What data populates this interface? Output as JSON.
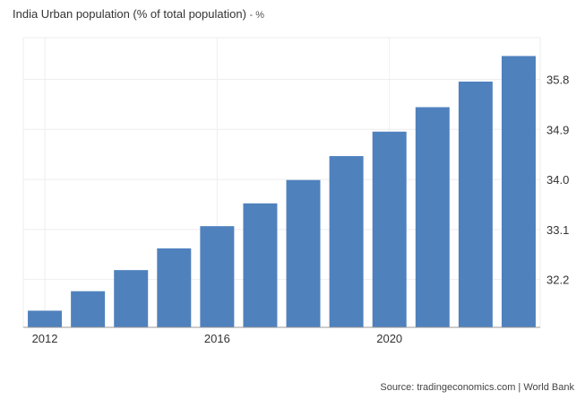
{
  "header": {
    "title": "India Urban population (% of total population)",
    "unit": "- %"
  },
  "footer": {
    "source": "Source: tradingeconomics.com | World Bank"
  },
  "chart_data": {
    "type": "bar",
    "title": "India Urban population (% of total population)",
    "unit": "%",
    "categories": [
      "2012",
      "2013",
      "2014",
      "2015",
      "2016",
      "2017",
      "2018",
      "2019",
      "2020",
      "2021",
      "2022",
      "2023"
    ],
    "values": [
      31.64,
      31.99,
      32.37,
      32.76,
      33.16,
      33.57,
      33.99,
      34.42,
      34.86,
      35.3,
      35.76,
      36.22
    ],
    "x_tick_labels": [
      "2012",
      "2016",
      "2020"
    ],
    "y_ticks": [
      32.2,
      33.1,
      34.0,
      34.9,
      35.8
    ],
    "y_tick_labels": [
      "32.2",
      "33.1",
      "34.0",
      "34.9",
      "35.8"
    ],
    "ylim": [
      31.34,
      36.55
    ],
    "grid": true,
    "y_axis_position": "right",
    "bar_color": "#4f81bd",
    "grid_color": "#eeeeee"
  }
}
